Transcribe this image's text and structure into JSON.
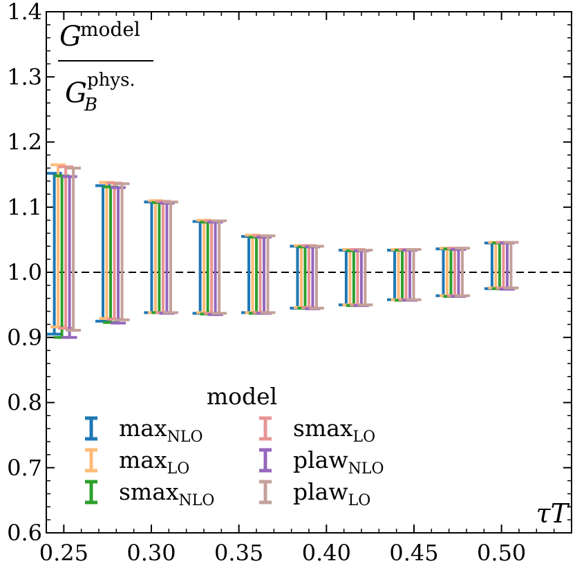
{
  "chart_data": {
    "type": "errorbar",
    "title": "",
    "ylabel": {
      "numerator": "G",
      "numerator_sup": "model",
      "denominator": "G",
      "denominator_sub": "B",
      "denominator_sup": "phys."
    },
    "xlabel": "τT",
    "xlim": [
      0.24,
      0.54
    ],
    "ylim": [
      0.6,
      1.4
    ],
    "x_ticks": [
      0.25,
      0.3,
      0.35,
      0.4,
      0.45,
      0.5
    ],
    "x_tick_labels": [
      "0.25",
      "0.30",
      "0.35",
      "0.40",
      "0.45",
      "0.50"
    ],
    "y_ticks": [
      0.6,
      0.7,
      0.8,
      0.9,
      1.0,
      1.1,
      1.2,
      1.3,
      1.4
    ],
    "y_tick_labels": [
      "0.6",
      "0.7",
      "0.8",
      "0.9",
      "1.0",
      "1.1",
      "1.2",
      "1.3",
      "1.4"
    ],
    "reference_line": 1.0,
    "x": [
      0.25,
      0.2778,
      0.3056,
      0.3333,
      0.3611,
      0.3889,
      0.4167,
      0.4444,
      0.4722,
      0.5
    ],
    "legend": {
      "title": "model",
      "position": "lower-left"
    },
    "series": [
      {
        "name": "max",
        "sub": "NLO",
        "color": "#1f77b4",
        "low": [
          0.905,
          0.925,
          0.938,
          0.937,
          0.938,
          0.945,
          0.95,
          0.958,
          0.964,
          0.975
        ],
        "high": [
          1.152,
          1.133,
          1.108,
          1.078,
          1.055,
          1.04,
          1.034,
          1.034,
          1.036,
          1.045
        ]
      },
      {
        "name": "max",
        "sub": "LO",
        "color": "#ffbb78",
        "low": [
          0.916,
          0.929,
          0.938,
          0.938,
          0.938,
          0.946,
          0.95,
          0.958,
          0.964,
          0.976
        ],
        "high": [
          1.165,
          1.138,
          1.11,
          1.08,
          1.057,
          1.041,
          1.035,
          1.035,
          1.037,
          1.046
        ]
      },
      {
        "name": "smax",
        "sub": "NLO",
        "color": "#2ca02c",
        "low": [
          0.9,
          0.923,
          0.938,
          0.936,
          0.937,
          0.945,
          0.949,
          0.957,
          0.963,
          0.975
        ],
        "high": [
          1.148,
          1.131,
          1.107,
          1.077,
          1.054,
          1.039,
          1.033,
          1.034,
          1.036,
          1.045
        ]
      },
      {
        "name": "smax",
        "sub": "LO",
        "color": "#e89494",
        "low": [
          0.914,
          0.928,
          0.938,
          0.937,
          0.938,
          0.946,
          0.95,
          0.958,
          0.964,
          0.976
        ],
        "high": [
          1.162,
          1.137,
          1.109,
          1.079,
          1.056,
          1.041,
          1.035,
          1.035,
          1.037,
          1.046
        ]
      },
      {
        "name": "plaw",
        "sub": "NLO",
        "color": "#9467bd",
        "low": [
          0.9,
          0.922,
          0.937,
          0.935,
          0.937,
          0.944,
          0.949,
          0.957,
          0.963,
          0.974
        ],
        "high": [
          1.147,
          1.13,
          1.106,
          1.077,
          1.054,
          1.039,
          1.033,
          1.034,
          1.035,
          1.045
        ]
      },
      {
        "name": "plaw",
        "sub": "LO",
        "color": "#c4a09a",
        "low": [
          0.911,
          0.927,
          0.938,
          0.937,
          0.938,
          0.945,
          0.95,
          0.958,
          0.964,
          0.976
        ],
        "high": [
          1.16,
          1.136,
          1.108,
          1.079,
          1.056,
          1.04,
          1.034,
          1.035,
          1.037,
          1.046
        ]
      }
    ]
  }
}
